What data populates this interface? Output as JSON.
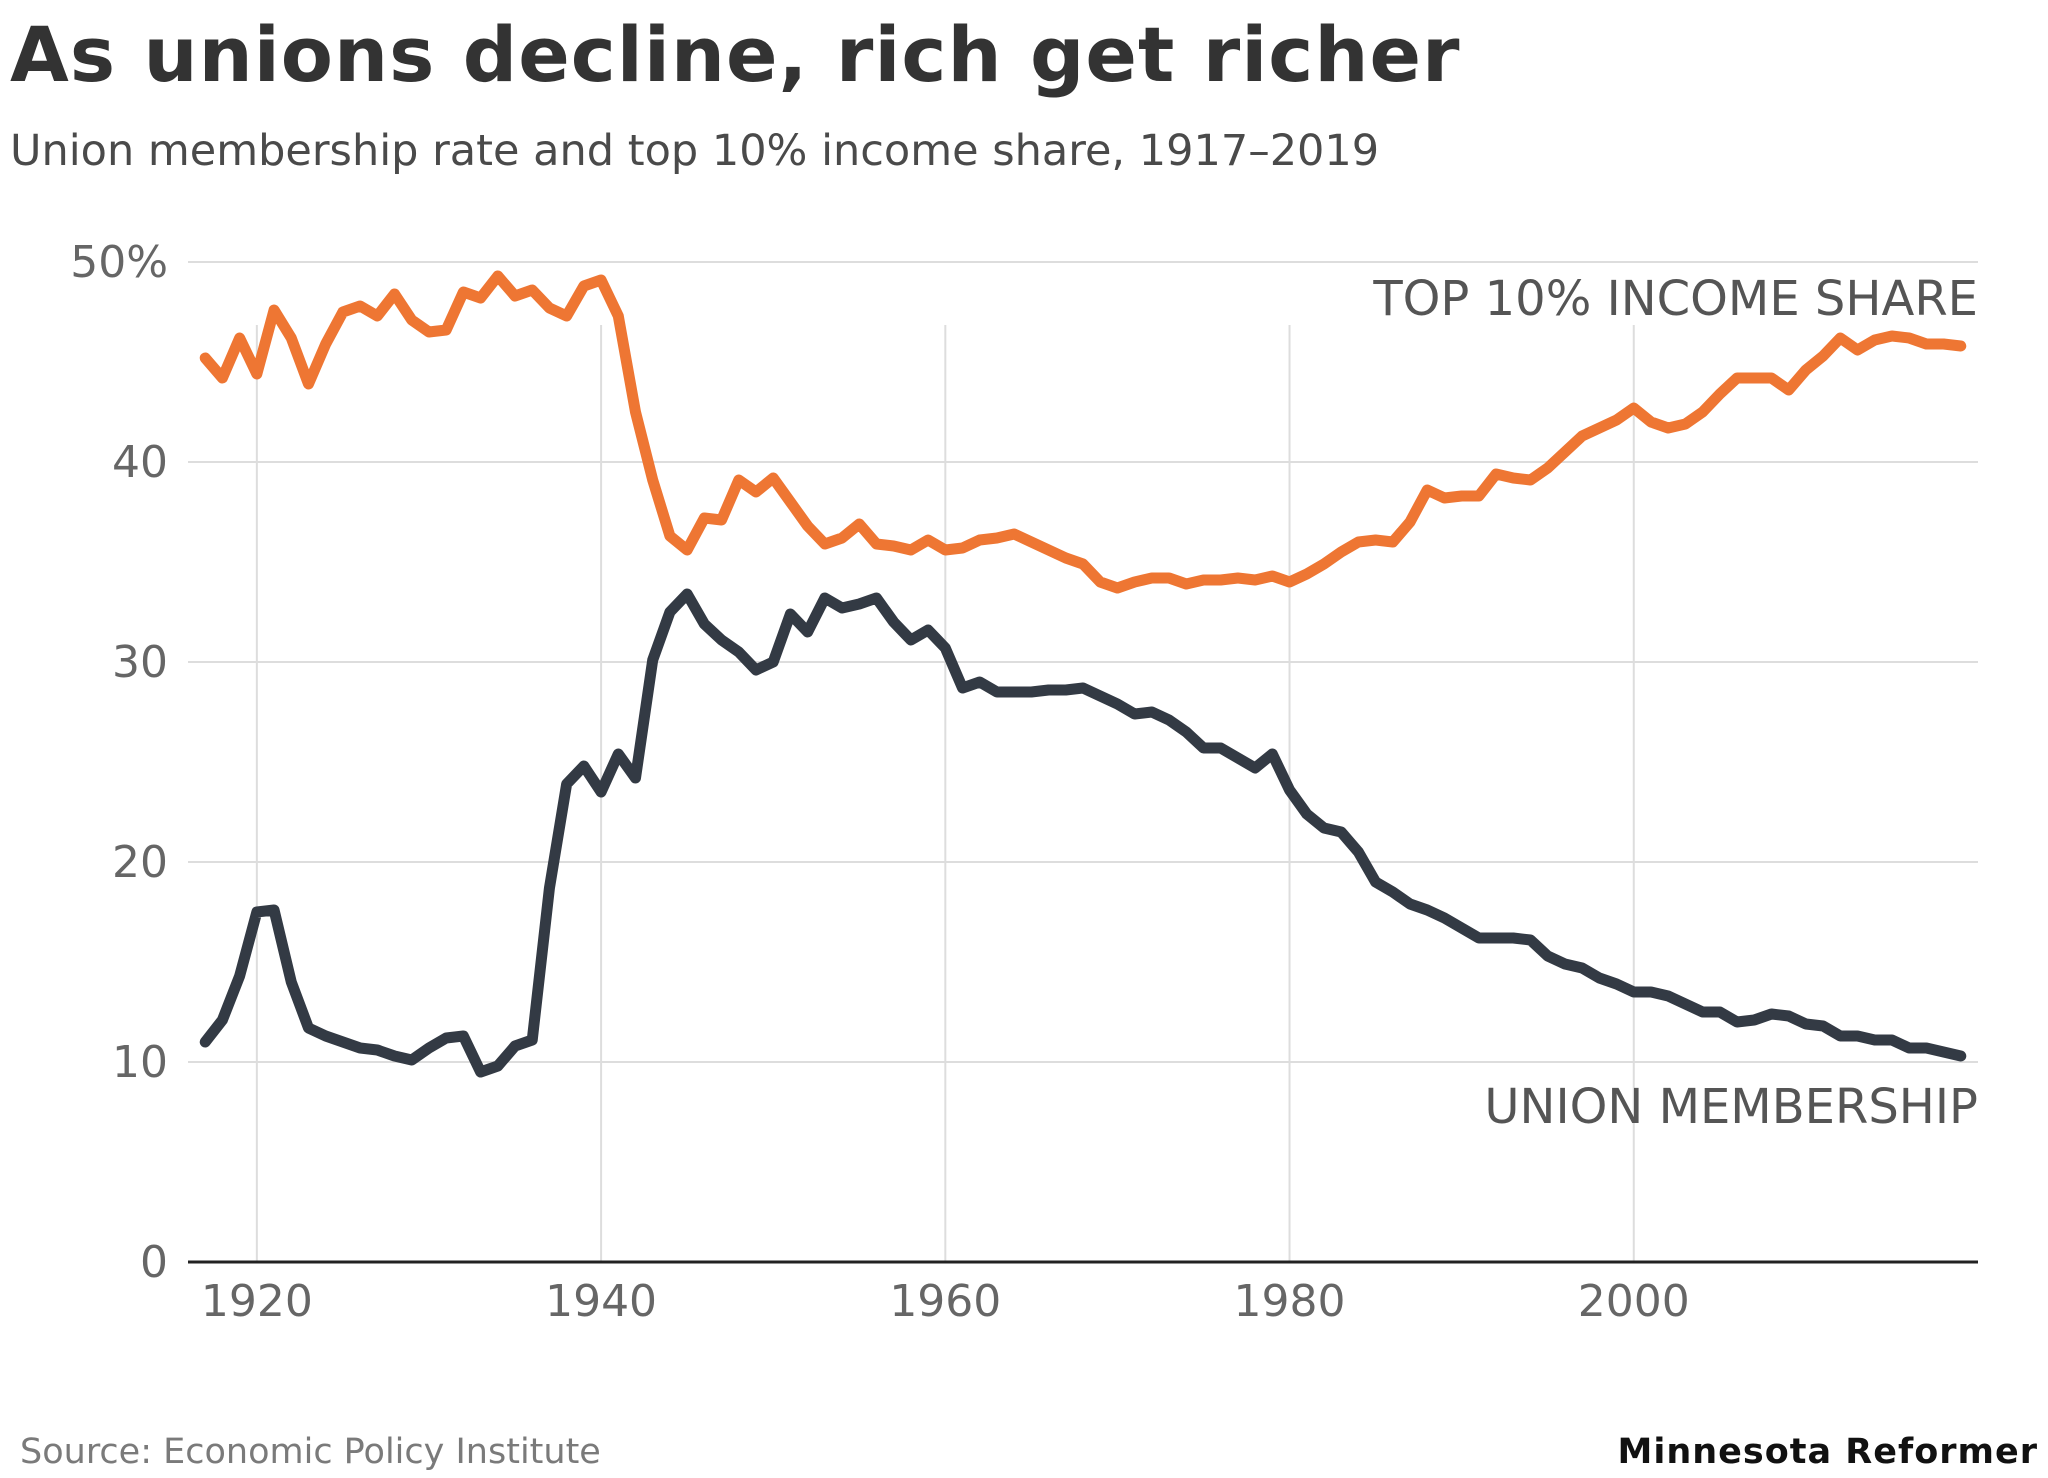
{
  "header": {
    "title": "As unions decline, rich get richer",
    "subtitle": "Union membership rate and top 10% income share, 1917–2019"
  },
  "footer": {
    "source": "Source: Economic Policy Institute",
    "brand": "Minnesota Reformer"
  },
  "colors": {
    "income_share": "#ee7633",
    "union_membership": "#333a44",
    "grid": "#dddddd",
    "axis": "#222222",
    "tick_text": "#666666",
    "label_text": "#555555"
  },
  "chart_data": {
    "type": "line",
    "title": "As unions decline, rich get richer",
    "subtitle": "Union membership rate and top 10% income share, 1917–2019",
    "xlabel": "",
    "ylabel": "",
    "xlim": [
      1916,
      2020
    ],
    "ylim": [
      0,
      50
    ],
    "x_ticks": [
      1920,
      1940,
      1960,
      1980,
      2000
    ],
    "x_tick_labels": [
      "1920",
      "1940",
      "1960",
      "1980",
      "2000"
    ],
    "y_ticks": [
      0,
      10,
      20,
      30,
      40,
      50
    ],
    "y_tick_labels": [
      "0",
      "10",
      "20",
      "30",
      "40",
      "50%"
    ],
    "grid": true,
    "series": [
      {
        "name": "TOP 10% INCOME SHARE",
        "color": "#ee7633",
        "x": [
          1917,
          1918,
          1919,
          1920,
          1921,
          1922,
          1923,
          1924,
          1925,
          1926,
          1927,
          1928,
          1929,
          1930,
          1931,
          1932,
          1933,
          1934,
          1935,
          1936,
          1937,
          1938,
          1939,
          1940,
          1941,
          1942,
          1943,
          1944,
          1945,
          1946,
          1947,
          1948,
          1949,
          1950,
          1951,
          1952,
          1953,
          1954,
          1955,
          1956,
          1957,
          1958,
          1959,
          1960,
          1961,
          1962,
          1963,
          1964,
          1965,
          1966,
          1967,
          1968,
          1969,
          1970,
          1971,
          1972,
          1973,
          1974,
          1975,
          1976,
          1977,
          1978,
          1979,
          1980,
          1981,
          1982,
          1983,
          1984,
          1985,
          1986,
          1987,
          1988,
          1989,
          1990,
          1991,
          1992,
          1993,
          1994,
          1995,
          1996,
          1997,
          1998,
          1999,
          2000,
          2001,
          2002,
          2003,
          2004,
          2005,
          2006,
          2007,
          2008,
          2009,
          2010,
          2011,
          2012,
          2013,
          2014,
          2015,
          2016,
          2017,
          2018,
          2019
        ],
        "values": [
          45.2,
          44.2,
          46.2,
          44.4,
          47.6,
          46.2,
          43.9,
          45.9,
          47.5,
          47.8,
          47.3,
          48.4,
          47.1,
          46.5,
          46.6,
          48.5,
          48.2,
          49.3,
          48.3,
          48.6,
          47.7,
          47.3,
          48.8,
          49.1,
          47.3,
          42.5,
          39.1,
          36.3,
          35.6,
          37.2,
          37.1,
          39.1,
          38.5,
          39.2,
          38.0,
          36.8,
          35.9,
          36.2,
          36.9,
          35.9,
          35.8,
          35.6,
          36.1,
          35.6,
          35.7,
          36.1,
          36.2,
          36.4,
          36.0,
          35.6,
          35.2,
          34.9,
          34.0,
          33.7,
          34.0,
          34.2,
          34.2,
          33.9,
          34.1,
          34.1,
          34.2,
          34.1,
          34.3,
          34.0,
          34.4,
          34.9,
          35.5,
          36.0,
          36.1,
          36.0,
          37.0,
          38.6,
          38.2,
          38.3,
          38.3,
          39.4,
          39.2,
          39.1,
          39.7,
          40.5,
          41.3,
          41.7,
          42.1,
          42.7,
          42.0,
          41.7,
          41.9,
          42.5,
          43.4,
          44.2,
          44.2,
          44.2,
          43.6,
          44.6,
          45.3,
          46.2,
          45.6,
          46.1,
          46.3,
          46.2,
          45.9,
          45.9,
          45.8
        ]
      },
      {
        "name": "UNION MEMBERSHIP",
        "color": "#333a44",
        "x": [
          1917,
          1918,
          1919,
          1920,
          1921,
          1922,
          1923,
          1924,
          1925,
          1926,
          1927,
          1928,
          1929,
          1930,
          1931,
          1932,
          1933,
          1934,
          1935,
          1936,
          1937,
          1938,
          1939,
          1940,
          1941,
          1942,
          1943,
          1944,
          1945,
          1946,
          1947,
          1948,
          1949,
          1950,
          1951,
          1952,
          1953,
          1954,
          1955,
          1956,
          1957,
          1958,
          1959,
          1960,
          1961,
          1962,
          1963,
          1964,
          1965,
          1966,
          1967,
          1968,
          1969,
          1970,
          1971,
          1972,
          1973,
          1974,
          1975,
          1976,
          1977,
          1978,
          1979,
          1980,
          1981,
          1982,
          1983,
          1984,
          1985,
          1986,
          1987,
          1988,
          1989,
          1990,
          1991,
          1992,
          1993,
          1994,
          1995,
          1996,
          1997,
          1998,
          1999,
          2000,
          2001,
          2002,
          2003,
          2004,
          2005,
          2006,
          2007,
          2008,
          2009,
          2010,
          2011,
          2012,
          2013,
          2014,
          2015,
          2016,
          2017,
          2018,
          2019
        ],
        "values": [
          11.0,
          12.1,
          14.3,
          17.5,
          17.6,
          14.0,
          11.7,
          11.3,
          11.0,
          10.7,
          10.6,
          10.3,
          10.1,
          10.7,
          11.2,
          11.3,
          9.5,
          9.8,
          10.8,
          11.1,
          18.7,
          23.9,
          24.8,
          23.5,
          25.4,
          24.2,
          30.1,
          32.5,
          33.4,
          31.9,
          31.1,
          30.5,
          29.6,
          30.0,
          32.4,
          31.5,
          33.2,
          32.7,
          32.9,
          33.2,
          32.0,
          31.1,
          31.6,
          30.7,
          28.7,
          29.0,
          28.5,
          28.5,
          28.5,
          28.6,
          28.6,
          28.7,
          28.3,
          27.9,
          27.4,
          27.5,
          27.1,
          26.5,
          25.7,
          25.7,
          25.2,
          24.7,
          25.4,
          23.6,
          22.4,
          21.7,
          21.5,
          20.5,
          19.0,
          18.5,
          17.9,
          17.6,
          17.2,
          16.7,
          16.2,
          16.2,
          16.2,
          16.1,
          15.3,
          14.9,
          14.7,
          14.2,
          13.9,
          13.5,
          13.5,
          13.3,
          12.9,
          12.5,
          12.5,
          12.0,
          12.1,
          12.4,
          12.3,
          11.9,
          11.8,
          11.3,
          11.3,
          11.1,
          11.1,
          10.7,
          10.7,
          10.5,
          10.3
        ]
      }
    ],
    "annotations": [
      {
        "text": "TOP 10% INCOME SHARE",
        "series": "TOP 10% INCOME SHARE",
        "placement": "top-right, above line"
      },
      {
        "text": "UNION MEMBERSHIP",
        "series": "UNION MEMBERSHIP",
        "placement": "bottom-right, below line"
      }
    ]
  }
}
